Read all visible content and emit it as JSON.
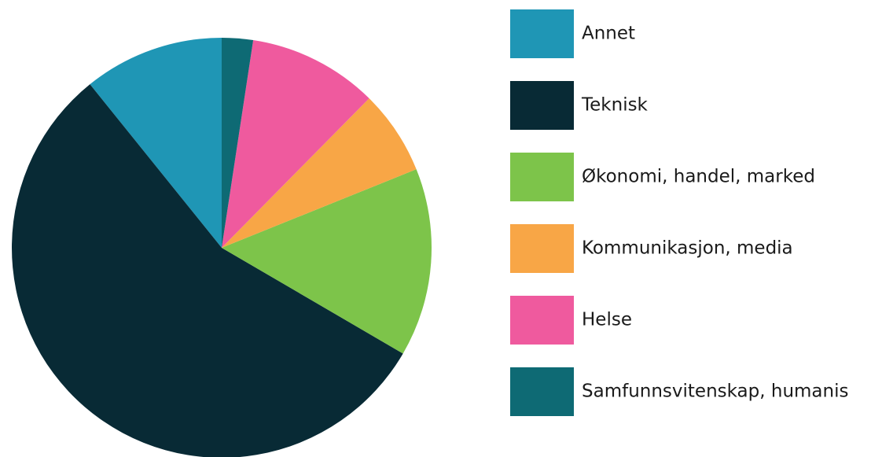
{
  "chart_data": {
    "type": "pie",
    "categories": [
      "Annet",
      "Teknisk",
      "Økonomi, handel, marked",
      "Kommunikasjon, media",
      "Helse",
      "Samfunnsvitenskap, humanis"
    ],
    "values": [
      10.8,
      55.8,
      14.5,
      6.5,
      10,
      2.4
    ],
    "colors": [
      "#1f96b5",
      "#082a35",
      "#7dc44a",
      "#f8a646",
      "#ef5a9e",
      "#0e6a74"
    ],
    "legend": "right"
  }
}
